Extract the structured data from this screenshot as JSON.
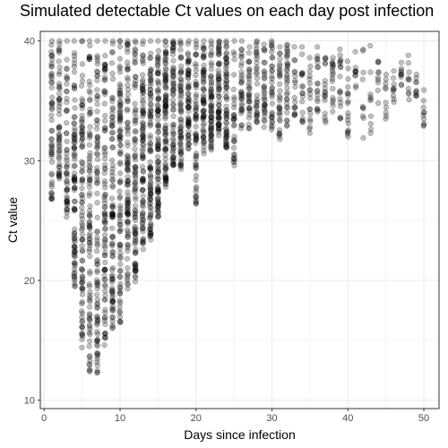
{
  "chart_data": {
    "type": "scatter",
    "title": "Simulated detectable Ct values on each day post infection",
    "xlabel": "Days since infection",
    "ylabel": "Ct value",
    "xlim": [
      -0.5,
      52
    ],
    "ylim": [
      40.8,
      9.3
    ],
    "y_reversed": true,
    "x_ticks": [
      0,
      10,
      20,
      30,
      40,
      50
    ],
    "y_ticks": [
      10,
      20,
      30,
      40
    ],
    "grid": true,
    "point_color": "#000000",
    "point_alpha": 0.25,
    "day_ranges": [
      [
        1,
        26.8,
        40.0
      ],
      [
        2,
        28.5,
        40.0
      ],
      [
        3,
        25.3,
        40.0
      ],
      [
        4,
        19.5,
        40.0
      ],
      [
        5,
        14.4,
        40.0
      ],
      [
        6,
        12.4,
        40.0
      ],
      [
        7,
        12.3,
        40.0
      ],
      [
        8,
        14.6,
        40.0
      ],
      [
        9,
        16.0,
        40.0
      ],
      [
        10,
        16.5,
        40.0
      ],
      [
        11,
        19.3,
        40.0
      ],
      [
        12,
        19.9,
        40.0
      ],
      [
        13,
        22.6,
        40.0
      ],
      [
        14,
        23.4,
        40.0
      ],
      [
        15,
        25.3,
        40.0
      ],
      [
        16,
        27.8,
        40.0
      ],
      [
        17,
        29.6,
        40.0
      ],
      [
        18,
        29.3,
        40.0
      ],
      [
        19,
        31.0,
        40.0
      ],
      [
        20,
        26.4,
        40.0
      ],
      [
        21,
        30.6,
        40.0
      ],
      [
        22,
        30.9,
        40.0
      ],
      [
        23,
        32.1,
        40.0
      ],
      [
        24,
        31.1,
        40.0
      ],
      [
        25,
        29.6,
        40.0
      ],
      [
        26,
        32.7,
        40.0
      ],
      [
        27,
        32.7,
        39.5
      ],
      [
        28,
        33.2,
        40.0
      ],
      [
        29,
        32.8,
        39.7
      ],
      [
        30,
        32.6,
        40.0
      ],
      [
        31,
        31.8,
        39.5
      ],
      [
        32,
        32.9,
        39.7
      ],
      [
        33,
        33.8,
        39.5
      ],
      [
        34,
        33.2,
        39.5
      ],
      [
        35,
        32.3,
        38.6
      ],
      [
        36,
        34.1,
        39.5
      ],
      [
        37,
        33.2,
        38.6
      ],
      [
        38,
        34.1,
        38.6
      ],
      [
        39,
        33.5,
        39.3
      ],
      [
        40,
        32.0,
        38.3
      ],
      [
        41,
        36.1,
        39.1
      ],
      [
        42,
        31.9,
        39.3
      ],
      [
        43,
        32.3,
        39.6
      ],
      [
        44,
        34.8,
        38.3
      ],
      [
        45,
        33.5,
        37.2
      ],
      [
        46,
        34.9,
        37.5
      ],
      [
        47,
        36.3,
        38.2
      ],
      [
        48,
        35.1,
        38.8
      ],
      [
        49,
        35.4,
        37.2
      ],
      [
        50,
        32.9,
        35.9
      ]
    ]
  }
}
